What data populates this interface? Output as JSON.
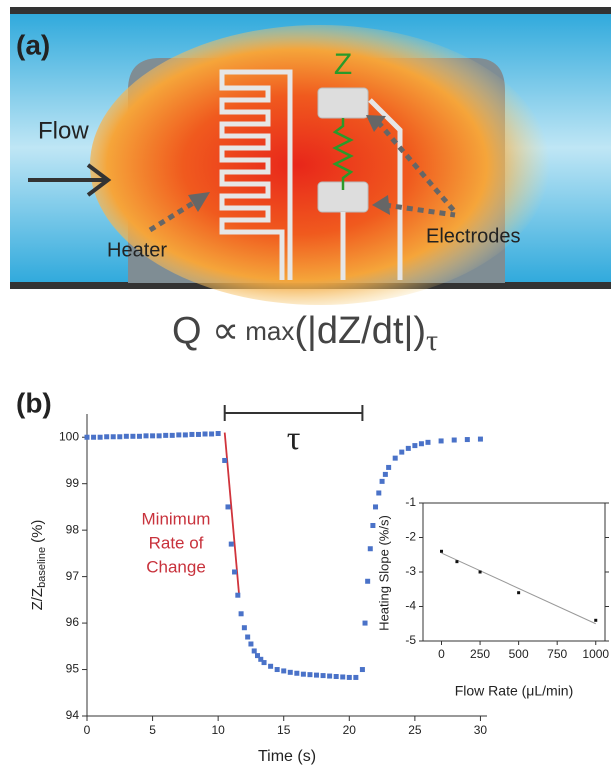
{
  "panel_a": {
    "label": "(a)",
    "flow": "Flow",
    "z": "Z",
    "heater": "Heater",
    "electrodes": "Electrodes",
    "formula": {
      "q": "Q ∝",
      "max": "max",
      "body": "(|dZ/dt|)",
      "subscript": "τ"
    }
  },
  "chart_data": [
    {
      "type": "scatter",
      "panel_label": "(b)",
      "x_label": "Time (s)",
      "y_label": {
        "main": "Z/Z",
        "subscript": "baseline",
        "unit": "(%)"
      },
      "color": "#4a72c8",
      "x": [
        0,
        0.5,
        1,
        1.5,
        2,
        2.5,
        3,
        3.5,
        4,
        4.5,
        5,
        5.5,
        6,
        6.5,
        7,
        7.5,
        8,
        8.5,
        9,
        9.5,
        10,
        10.5,
        10.75,
        11,
        11.25,
        11.5,
        11.75,
        12,
        12.25,
        12.5,
        12.75,
        13,
        13.25,
        13.5,
        14,
        14.5,
        15,
        15.5,
        16,
        16.5,
        17,
        17.5,
        18,
        18.5,
        19,
        19.5,
        20,
        20.5,
        21,
        21.2,
        21.4,
        21.6,
        21.8,
        22,
        22.25,
        22.5,
        22.75,
        23,
        23.5,
        24,
        24.5,
        25,
        25.5,
        26,
        27,
        28,
        29,
        30
      ],
      "values": [
        100.0,
        100.0,
        100.0,
        100.01,
        100.01,
        100.01,
        100.02,
        100.02,
        100.02,
        100.03,
        100.03,
        100.03,
        100.04,
        100.04,
        100.05,
        100.05,
        100.06,
        100.06,
        100.07,
        100.07,
        100.08,
        99.5,
        98.5,
        97.7,
        97.1,
        96.6,
        96.2,
        95.9,
        95.7,
        95.55,
        95.4,
        95.3,
        95.22,
        95.15,
        95.07,
        95.0,
        94.97,
        94.94,
        94.92,
        94.9,
        94.89,
        94.88,
        94.87,
        94.86,
        94.85,
        94.84,
        94.83,
        94.83,
        95.0,
        96.0,
        96.9,
        97.6,
        98.1,
        98.5,
        98.8,
        99.05,
        99.2,
        99.35,
        99.55,
        99.68,
        99.76,
        99.82,
        99.86,
        99.89,
        99.92,
        99.94,
        99.95,
        99.96
      ],
      "xlim": [
        0,
        30.5
      ],
      "xticks": [
        0,
        5,
        10,
        15,
        20,
        25,
        30
      ],
      "ylim": [
        94,
        100.5
      ],
      "yticks": [
        94,
        95,
        96,
        97,
        98,
        99,
        100
      ],
      "fit_line": {
        "x": [
          10.5,
          11.6
        ],
        "y": [
          100.1,
          96.6
        ],
        "color": "#d0343c"
      },
      "annotation": {
        "lines": [
          "Minimum",
          "Rate of",
          "Change"
        ],
        "color": "#c8323c"
      },
      "tau_bracket": {
        "x": [
          10.5,
          21
        ],
        "label": "τ"
      }
    },
    {
      "type": "scatter",
      "x_label": "Flow Rate (μL/min)",
      "y_label": "Heating Slope (%/s)",
      "color": "#111111",
      "x": [
        0,
        100,
        250,
        500,
        1000
      ],
      "values": [
        -2.4,
        -2.7,
        -3.0,
        -3.6,
        -4.4
      ],
      "xlim": [
        -120,
        1060
      ],
      "xticks": [
        0,
        250,
        500,
        750,
        1000
      ],
      "ylim": [
        -5,
        -1
      ],
      "yticks": [
        -5,
        -4,
        -3,
        -2,
        -1
      ],
      "fit_line": {
        "x": [
          0,
          1000
        ],
        "y": [
          -2.45,
          -4.5
        ],
        "color": "#999999"
      }
    }
  ]
}
